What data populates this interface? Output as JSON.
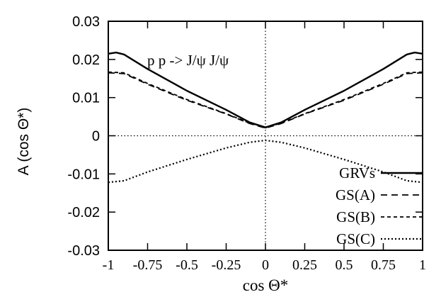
{
  "chart_data": {
    "type": "line",
    "title": "",
    "annotation": "p p -> J/ψ J/ψ",
    "xlabel": "cos Θ*",
    "ylabel": "A (cos Θ*)",
    "xlim": [
      -1,
      1
    ],
    "ylim": [
      -0.03,
      0.03
    ],
    "x_ticks": [
      -1,
      -0.75,
      -0.5,
      -0.25,
      0,
      0.25,
      0.5,
      0.75,
      1
    ],
    "x_tick_labels": [
      "-1",
      "-0.75",
      "-0.5",
      "-0.25",
      "0",
      "0.25",
      "0.5",
      "0.75",
      "1"
    ],
    "y_ticks": [
      -0.03,
      -0.02,
      -0.01,
      0,
      0.01,
      0.02,
      0.03
    ],
    "y_tick_labels": [
      "-0.03",
      "-0.02",
      "-0.01",
      "0",
      "0.01",
      "0.02",
      "0.03"
    ],
    "reference_lines": {
      "y": 0,
      "x": 0
    },
    "legend_position": "bottom-right",
    "series": [
      {
        "name": "GRVs",
        "style": "solid",
        "x": [
          -1,
          -0.95,
          -0.9,
          -0.75,
          -0.5,
          -0.25,
          -0.1,
          0,
          0.1,
          0.25,
          0.5,
          0.75,
          0.9,
          0.95,
          1
        ],
        "y": [
          0.0215,
          0.0218,
          0.0213,
          0.0175,
          0.0118,
          0.0068,
          0.0035,
          0.0022,
          0.0035,
          0.0068,
          0.0118,
          0.0175,
          0.0213,
          0.0218,
          0.0215
        ]
      },
      {
        "name": "GS(A)",
        "style": "dashed",
        "x": [
          -1,
          -0.9,
          -0.75,
          -0.5,
          -0.25,
          -0.1,
          0,
          0.1,
          0.25,
          0.5,
          0.75,
          0.9,
          1
        ],
        "y": [
          0.0165,
          0.0163,
          0.0135,
          0.0093,
          0.0057,
          0.0032,
          0.002,
          0.0032,
          0.0057,
          0.0093,
          0.0135,
          0.0163,
          0.0165
        ]
      },
      {
        "name": "GS(B)",
        "style": "short-dashed",
        "x": [
          -1,
          -0.9,
          -0.75,
          -0.5,
          -0.25,
          -0.1,
          0,
          0.1,
          0.25,
          0.5,
          0.75,
          0.9,
          1
        ],
        "y": [
          0.0167,
          0.0165,
          0.0137,
          0.0095,
          0.0058,
          0.0033,
          0.0021,
          0.0033,
          0.0058,
          0.0095,
          0.0137,
          0.0165,
          0.0167
        ]
      },
      {
        "name": "GS(C)",
        "style": "dotted",
        "x": [
          -1,
          -0.9,
          -0.75,
          -0.5,
          -0.25,
          -0.1,
          0,
          0.1,
          0.25,
          0.5,
          0.75,
          0.9,
          1
        ],
        "y": [
          -0.0122,
          -0.0118,
          -0.0095,
          -0.0062,
          -0.0032,
          -0.0017,
          -0.0012,
          -0.0017,
          -0.0032,
          -0.0062,
          -0.0095,
          -0.0118,
          -0.0122
        ]
      }
    ]
  }
}
